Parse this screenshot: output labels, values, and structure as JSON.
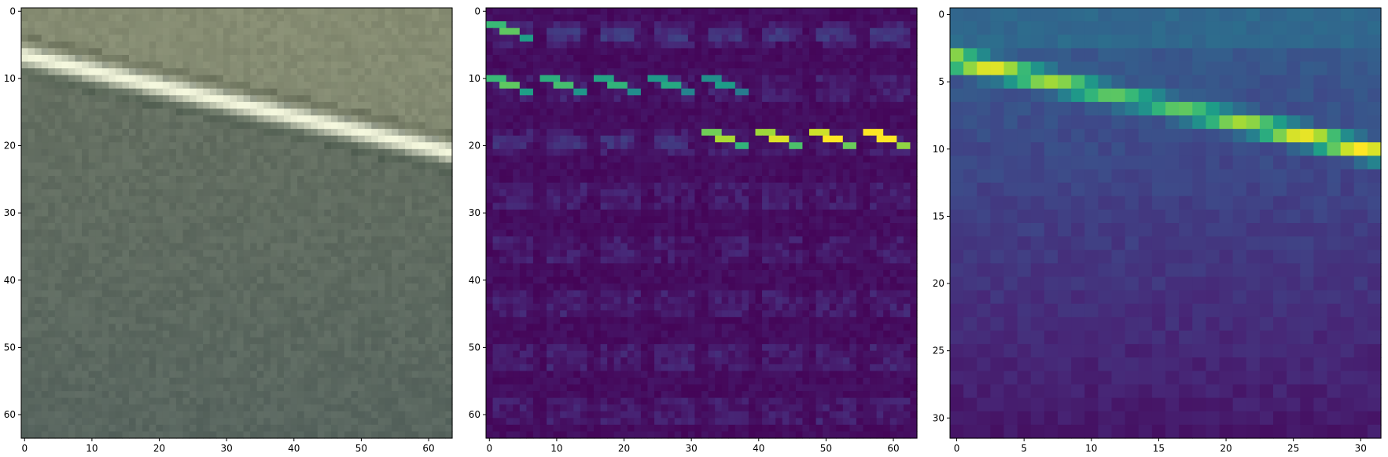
{
  "figure": {
    "panels": [
      {
        "kind": "rgb-image",
        "size": 64,
        "x_ticks": [
          "0",
          "10",
          "20",
          "30",
          "40",
          "50",
          "60"
        ],
        "y_ticks": [
          "0",
          "10",
          "20",
          "30",
          "40",
          "50",
          "60"
        ]
      },
      {
        "kind": "heatmap-grid",
        "size": 64,
        "colormap": "viridis",
        "x_ticks": [
          "0",
          "10",
          "20",
          "30",
          "40",
          "50",
          "60"
        ],
        "y_ticks": [
          "0",
          "10",
          "20",
          "30",
          "40",
          "50",
          "60"
        ]
      },
      {
        "kind": "heatmap",
        "size": 32,
        "colormap": "viridis",
        "x_ticks": [
          "0",
          "5",
          "10",
          "15",
          "20",
          "25",
          "30"
        ],
        "y_ticks": [
          "0",
          "5",
          "10",
          "15",
          "20",
          "25",
          "30"
        ]
      }
    ]
  },
  "chart_data": [
    {
      "type": "heatmap",
      "description_source": "panel-1",
      "x_range": [
        0,
        64
      ],
      "y_range": [
        0,
        64
      ],
      "xticks": [
        0,
        10,
        20,
        30,
        40,
        50,
        60
      ],
      "yticks": [
        0,
        10,
        20,
        30,
        40,
        50,
        60
      ],
      "grid": false,
      "content": "aerial RGB patch with a bright diagonal stripe"
    },
    {
      "type": "heatmap",
      "x_range": [
        0,
        64
      ],
      "y_range": [
        0,
        64
      ],
      "xticks": [
        0,
        10,
        20,
        30,
        40,
        50,
        60
      ],
      "yticks": [
        0,
        10,
        20,
        30,
        40,
        50,
        60
      ],
      "grid": false,
      "colormap": "viridis"
    },
    {
      "type": "heatmap",
      "x_range": [
        0,
        32
      ],
      "y_range": [
        0,
        32
      ],
      "xticks": [
        0,
        5,
        10,
        15,
        20,
        25,
        30
      ],
      "yticks": [
        0,
        5,
        10,
        15,
        20,
        25,
        30
      ],
      "grid": false,
      "colormap": "viridis"
    }
  ]
}
